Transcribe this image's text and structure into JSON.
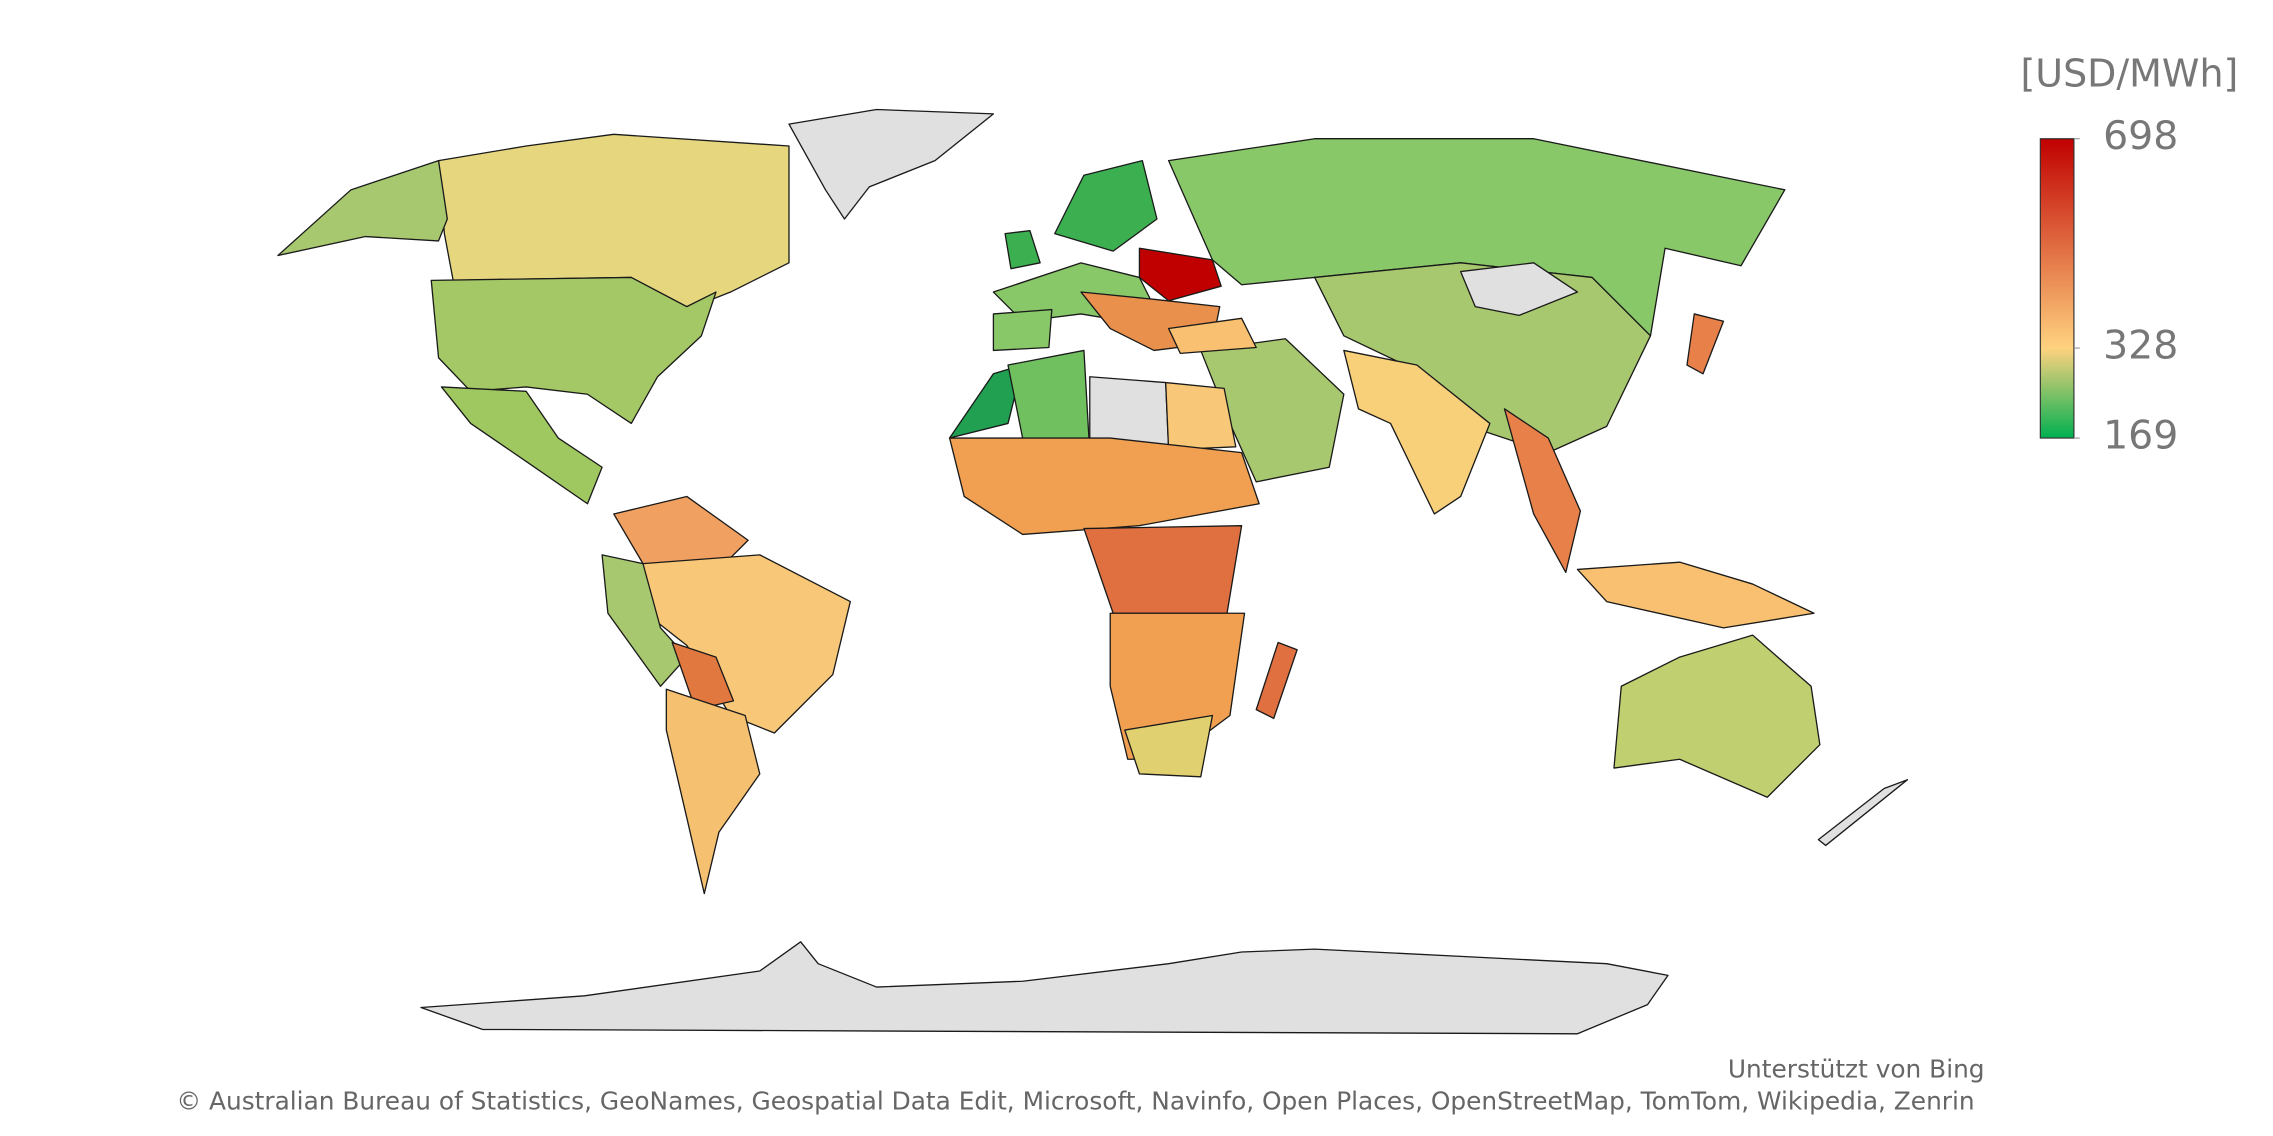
{
  "legend": {
    "title": "[USD/MWh]",
    "max": 698,
    "mid": 328,
    "min": 169,
    "colors": [
      "#c00000",
      "#ffd27f",
      "#00b050"
    ]
  },
  "attribution": {
    "powered": "Unterstützt von Bing",
    "credits": "© Australian Bureau of Statistics, GeoNames, Geospatial Data Edit, Microsoft, Navinfo, Open Places, OpenStreetMap, TomTom, Wikipedia, Zenrin"
  }
}
